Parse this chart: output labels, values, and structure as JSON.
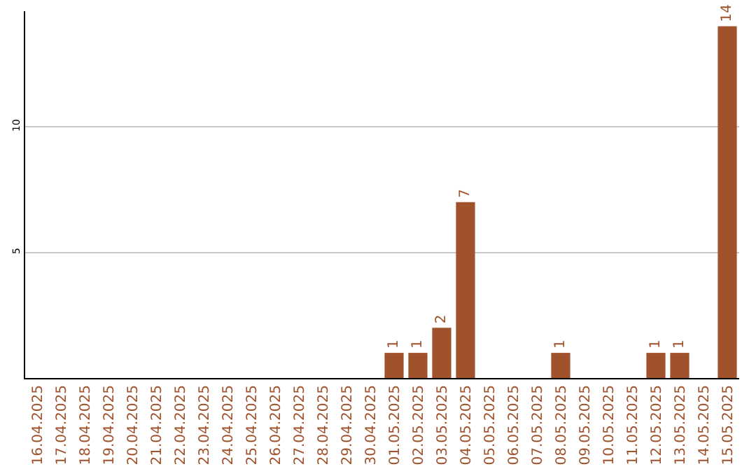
{
  "chart_data": {
    "type": "bar",
    "categories": [
      "16.04.2025",
      "17.04.2025",
      "18.04.2025",
      "19.04.2025",
      "20.04.2025",
      "21.04.2025",
      "22.04.2025",
      "23.04.2025",
      "24.04.2025",
      "25.04.2025",
      "26.04.2025",
      "27.04.2025",
      "28.04.2025",
      "29.04.2025",
      "30.04.2025",
      "01.05.2025",
      "02.05.2025",
      "03.05.2025",
      "04.05.2025",
      "05.05.2025",
      "06.05.2025",
      "07.05.2025",
      "08.05.2025",
      "09.05.2025",
      "10.05.2025",
      "11.05.2025",
      "12.05.2025",
      "13.05.2025",
      "14.05.2025",
      "15.05.2025"
    ],
    "values": [
      0,
      0,
      0,
      0,
      0,
      0,
      0,
      0,
      0,
      0,
      0,
      0,
      0,
      0,
      0,
      1,
      1,
      2,
      7,
      0,
      0,
      0,
      1,
      0,
      0,
      0,
      1,
      1,
      0,
      14
    ],
    "value_labels": [
      null,
      null,
      null,
      null,
      null,
      null,
      null,
      null,
      null,
      null,
      null,
      null,
      null,
      null,
      null,
      "1",
      "1",
      "2",
      "7",
      null,
      null,
      null,
      "1",
      null,
      null,
      null,
      "1",
      "1",
      null,
      "14"
    ],
    "color": "#a0522d",
    "ylim": [
      0,
      14.6
    ],
    "yticks": [
      5,
      10
    ],
    "grid": "y"
  }
}
